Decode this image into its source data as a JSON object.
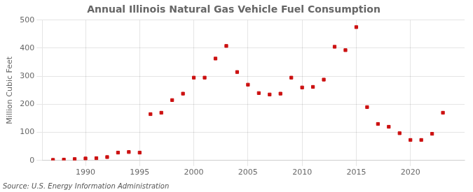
{
  "chart_data": {
    "type": "scatter",
    "title": "Annual Illinois Natural Gas Vehicle Fuel Consumption",
    "ylabel": "Million Cubic Feet",
    "source": "Source: U.S. Energy Information Administration",
    "x": [
      1987,
      1988,
      1989,
      1990,
      1991,
      1992,
      1993,
      1994,
      1995,
      1996,
      1997,
      1998,
      1999,
      2000,
      2001,
      2002,
      2003,
      2004,
      2005,
      2006,
      2007,
      2008,
      2009,
      2010,
      2011,
      2012,
      2013,
      2014,
      2015,
      2016,
      2017,
      2018,
      2019,
      2020,
      2021,
      2022,
      2023
    ],
    "values": [
      2,
      3,
      5,
      7,
      8,
      12,
      28,
      30,
      28,
      165,
      170,
      215,
      238,
      295,
      295,
      363,
      408,
      315,
      270,
      240,
      235,
      238,
      295,
      260,
      262,
      288,
      405,
      393,
      475,
      190,
      130,
      120,
      97,
      73,
      73,
      95,
      170
    ],
    "color": "#cc1111",
    "marker": "square",
    "xlim": [
      1986,
      2025
    ],
    "xticks": [
      1990,
      1995,
      2000,
      2005,
      2010,
      2015,
      2020
    ],
    "ylim": [
      0,
      500
    ],
    "yticks": [
      0,
      100,
      200,
      300,
      400,
      500
    ],
    "grid": true
  }
}
